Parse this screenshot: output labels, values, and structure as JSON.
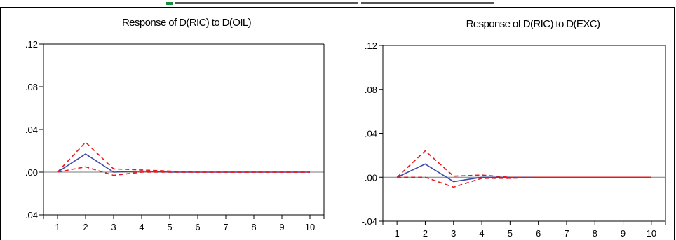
{
  "colors": {
    "response": "#3b49a8",
    "band": "#e8191d",
    "zero_line": "#7a7a7a",
    "axis": "#000000",
    "top_strip_text": "#1b8a3e"
  },
  "chart_data": [
    {
      "type": "line",
      "title": "Response of D(RIC) to D(OIL)",
      "xlabel": "",
      "ylabel": "",
      "x": [
        1,
        2,
        3,
        4,
        5,
        6,
        7,
        8,
        9,
        10
      ],
      "x_tick_labels": [
        "1",
        "2",
        "3",
        "4",
        "5",
        "6",
        "7",
        "8",
        "9",
        "10"
      ],
      "y_tick_labels": [
        ".12",
        ".08",
        ".04",
        ".00",
        "-.04"
      ],
      "y_ticks": [
        0.12,
        0.08,
        0.04,
        0.0,
        -0.04
      ],
      "xlim": [
        0.5,
        10.5
      ],
      "ylim": [
        -0.04,
        0.12
      ],
      "zero_line": true,
      "grid": false,
      "series": [
        {
          "role": "response",
          "style": "solid",
          "values": [
            0.0,
            0.017,
            0.0,
            0.001,
            0.0,
            0.0,
            0.0,
            0.0,
            0.0,
            0.0
          ]
        },
        {
          "role": "upper_band",
          "style": "dashed",
          "values": [
            0.0,
            0.028,
            0.003,
            0.002,
            0.001,
            0.0,
            0.0,
            0.0,
            0.0,
            0.0
          ]
        },
        {
          "role": "lower_band",
          "style": "dashed",
          "values": [
            0.0,
            0.005,
            -0.003,
            0.0,
            0.0,
            0.0,
            0.0,
            0.0,
            0.0,
            0.0
          ]
        }
      ]
    },
    {
      "type": "line",
      "title": "Response of D(RIC) to D(EXC)",
      "xlabel": "",
      "ylabel": "",
      "x": [
        1,
        2,
        3,
        4,
        5,
        6,
        7,
        8,
        9,
        10
      ],
      "x_tick_labels": [
        "1",
        "2",
        "3",
        "4",
        "5",
        "6",
        "7",
        "8",
        "9",
        "10"
      ],
      "y_tick_labels": [
        ".12",
        ".08",
        ".04",
        ".00",
        "-.04"
      ],
      "y_ticks": [
        0.12,
        0.08,
        0.04,
        0.0,
        -0.04
      ],
      "xlim": [
        0.5,
        10.5
      ],
      "ylim": [
        -0.04,
        0.12
      ],
      "zero_line": true,
      "grid": false,
      "series": [
        {
          "role": "response",
          "style": "solid",
          "values": [
            0.0,
            0.012,
            -0.004,
            0.0,
            0.0,
            0.0,
            0.0,
            0.0,
            0.0,
            0.0
          ]
        },
        {
          "role": "upper_band",
          "style": "dashed",
          "values": [
            0.0,
            0.024,
            0.001,
            0.002,
            0.0,
            0.0,
            0.0,
            0.0,
            0.0,
            0.0
          ]
        },
        {
          "role": "lower_band",
          "style": "dashed",
          "values": [
            0.0,
            0.0,
            -0.009,
            -0.001,
            -0.001,
            0.0,
            0.0,
            0.0,
            0.0,
            0.0
          ]
        }
      ]
    }
  ]
}
